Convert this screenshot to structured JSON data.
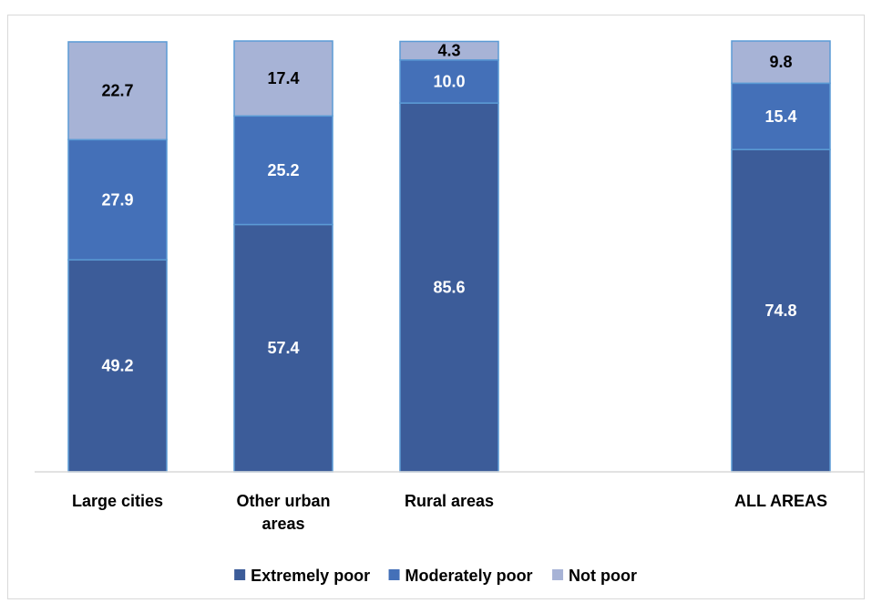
{
  "chart_data": {
    "type": "bar",
    "stacked": true,
    "categories": [
      "Large cities",
      "Other urban areas",
      "Rural areas",
      "",
      "ALL AREAS"
    ],
    "category_lines": [
      [
        "Large cities"
      ],
      [
        "Other urban",
        "areas"
      ],
      [
        "Rural areas"
      ],
      [],
      [
        "ALL AREAS"
      ]
    ],
    "ylim": [
      0,
      100
    ],
    "grid": false,
    "legend_position": "bottom",
    "series": [
      {
        "name": "Extremely poor",
        "values": [
          49.2,
          57.4,
          85.6,
          null,
          74.8
        ],
        "labels": [
          "49.2",
          "57.4",
          "85.6",
          "",
          "74.8"
        ],
        "color": "#3c5c99",
        "label_color": "#ffffff"
      },
      {
        "name": "Moderately poor",
        "values": [
          27.9,
          25.2,
          10.0,
          null,
          15.4
        ],
        "labels": [
          "27.9",
          "25.2",
          "10.0",
          "",
          "15.4"
        ],
        "color": "#4470b8",
        "label_color": "#ffffff"
      },
      {
        "name": "Not poor",
        "values": [
          22.7,
          17.4,
          4.3,
          null,
          9.8
        ],
        "labels": [
          "22.7",
          "17.4",
          "4.3",
          "",
          "9.8"
        ],
        "color": "#a7b3d6",
        "label_color": "#000000"
      }
    ],
    "bar_border_color": "#5b9bd5",
    "axis_color": "#d9d9d9"
  }
}
